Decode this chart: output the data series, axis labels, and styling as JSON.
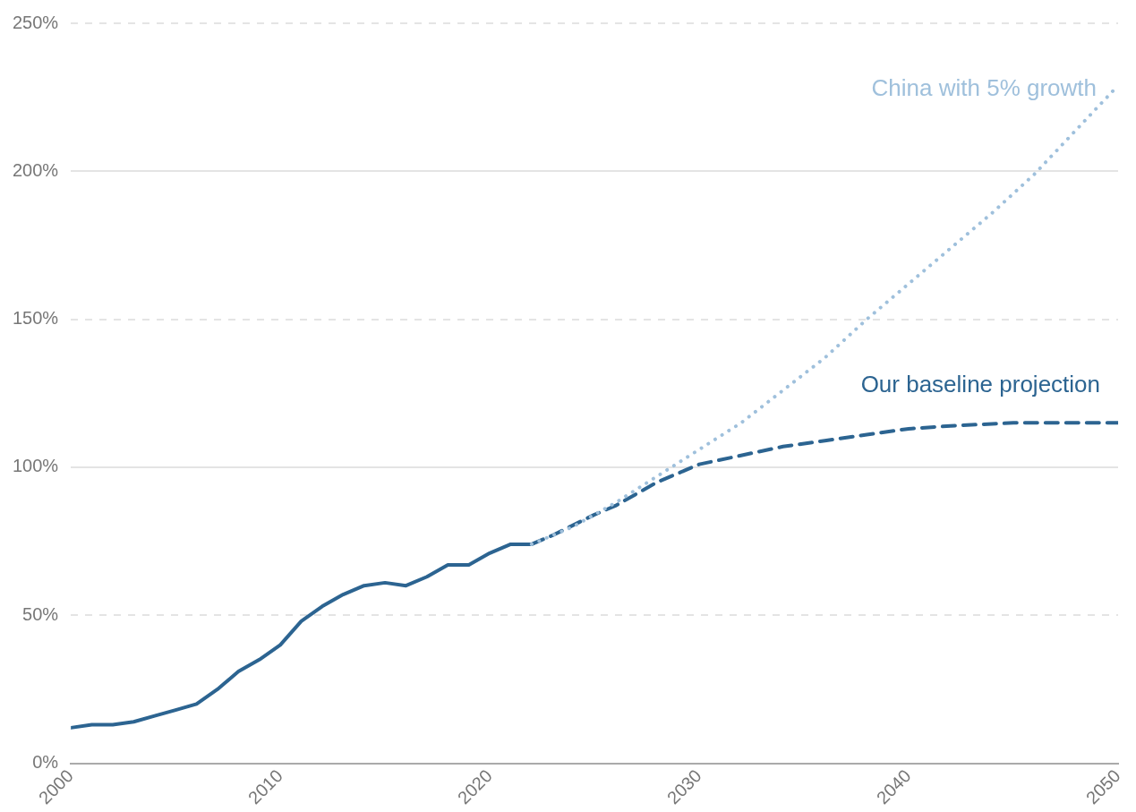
{
  "chart_data": {
    "type": "line",
    "xlim": [
      2000,
      2050
    ],
    "xticks": [
      2000,
      2010,
      2020,
      2030,
      2040,
      2050
    ],
    "ylim": [
      0,
      250
    ],
    "yticks": [
      {
        "value": 0,
        "label": "0%"
      },
      {
        "value": 50,
        "label": "50%"
      },
      {
        "value": 100,
        "label": "100%"
      },
      {
        "value": 150,
        "label": "150%"
      },
      {
        "value": 200,
        "label": "200%"
      },
      {
        "value": 250,
        "label": "250%"
      }
    ],
    "grid": "y",
    "legend": false,
    "marker": "none",
    "series": [
      {
        "name": "China with 5% growth",
        "color": "#9fc0dc",
        "line_style": "dotted",
        "x": [
          2022,
          2024,
          2026,
          2028,
          2030,
          2032,
          2034,
          2036,
          2038,
          2040,
          2042,
          2044,
          2046,
          2048,
          2050
        ],
        "values": [
          74,
          80,
          88,
          97,
          106,
          115,
          126,
          137,
          150,
          162,
          174,
          186,
          199,
          214,
          229
        ]
      },
      {
        "name": "Our baseline projection",
        "color": "#2c6491",
        "line_style": "dashed",
        "x": [
          2022,
          2023,
          2025,
          2026,
          2028,
          2030,
          2032,
          2034,
          2036,
          2038,
          2040,
          2042,
          2045,
          2050
        ],
        "values": [
          74,
          77,
          84,
          87,
          95,
          101,
          104,
          107,
          109,
          111,
          113,
          114,
          115,
          115
        ]
      },
      {
        "color": "#2c6491",
        "line_style": "solid",
        "x": [
          2000,
          2001,
          2002,
          2003,
          2004,
          2005,
          2006,
          2007,
          2008,
          2009,
          2010,
          2011,
          2012,
          2013,
          2014,
          2015,
          2016,
          2017,
          2018,
          2019,
          2020,
          2021,
          2022
        ],
        "values": [
          12,
          13,
          13,
          14,
          16,
          18,
          20,
          25,
          31,
          35,
          40,
          48,
          53,
          57,
          60,
          61,
          60,
          63,
          67,
          67,
          71,
          74,
          74
        ]
      }
    ]
  }
}
